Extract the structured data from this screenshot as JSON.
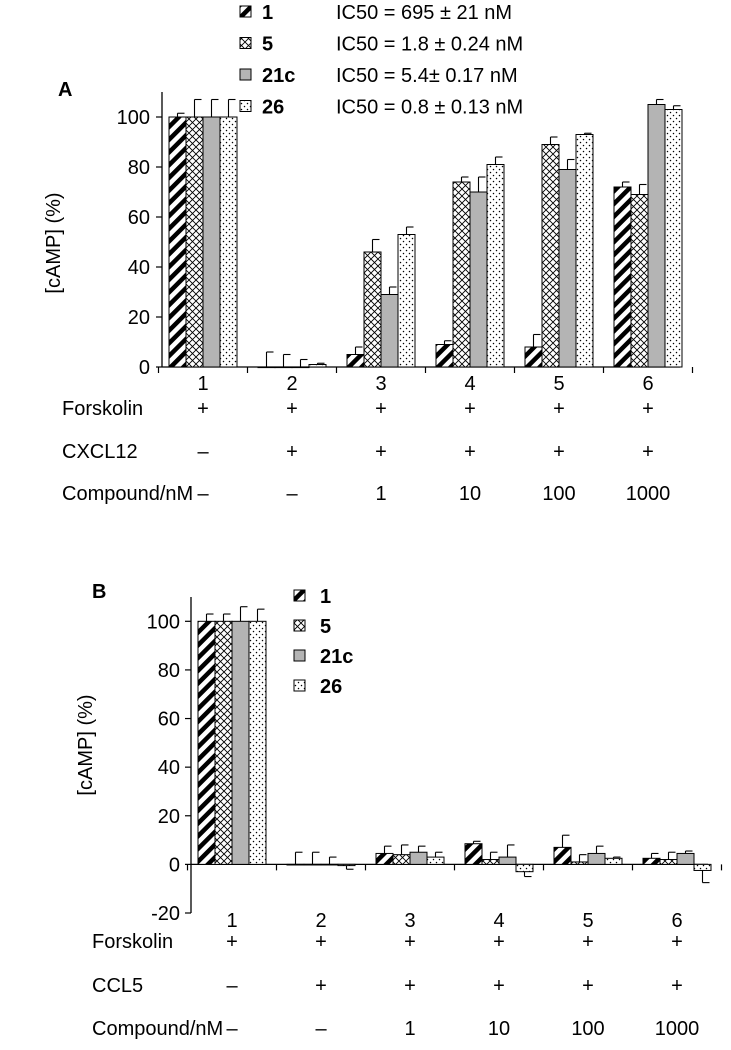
{
  "chart_data": [
    {
      "panel": "A",
      "type": "bar",
      "ylabel": "[cAMP] (%)",
      "ylim": [
        0,
        110
      ],
      "yticks": [
        0,
        20,
        40,
        60,
        80,
        100
      ],
      "categories": [
        "1",
        "2",
        "3",
        "4",
        "5",
        "6"
      ],
      "series": [
        {
          "name": "1",
          "ic50": "IC50 = 695 ± 21 nM",
          "values": [
            100,
            0,
            5,
            9,
            8,
            72
          ],
          "errors": [
            1.5,
            6,
            3,
            1.5,
            5,
            2
          ]
        },
        {
          "name": "5",
          "ic50": "IC50 = 1.8 ± 0.24 nM",
          "values": [
            100,
            0,
            46,
            74,
            89,
            69
          ],
          "errors": [
            7,
            5,
            5,
            2,
            3,
            4
          ]
        },
        {
          "name": "21c",
          "ic50": "IC50 = 5.4± 0.17 nM",
          "values": [
            100,
            0,
            29,
            70,
            79,
            105
          ],
          "errors": [
            7,
            3,
            3,
            6,
            4,
            2
          ]
        },
        {
          "name": "26",
          "ic50": "IC50 = 0.8 ± 0.13 nM",
          "values": [
            100,
            1,
            53,
            81,
            93,
            103
          ],
          "errors": [
            7,
            0.5,
            3,
            3,
            0.5,
            1.5
          ]
        }
      ],
      "condition_rows": [
        {
          "label": "Forskolin",
          "values": [
            "+",
            "+",
            "+",
            "+",
            "+",
            "+"
          ]
        },
        {
          "label": "CXCL12",
          "values": [
            "–",
            "+",
            "+",
            "+",
            "+",
            "+"
          ]
        },
        {
          "label": "Compound/nM",
          "values": [
            "–",
            "–",
            "1",
            "10",
            "100",
            "1000"
          ]
        }
      ],
      "legend_position": "top"
    },
    {
      "panel": "B",
      "type": "bar",
      "ylabel": "[cAMP] (%)",
      "ylim": [
        -20,
        110
      ],
      "yticks": [
        -20,
        0,
        20,
        40,
        60,
        80,
        100
      ],
      "categories": [
        "1",
        "2",
        "3",
        "4",
        "5",
        "6"
      ],
      "series": [
        {
          "name": "1",
          "values": [
            100,
            0,
            4.5,
            8.5,
            7,
            2.5
          ],
          "errors": [
            3,
            5,
            3,
            1,
            5,
            2
          ]
        },
        {
          "name": "5",
          "values": [
            100,
            0,
            4,
            2,
            1,
            2
          ],
          "errors": [
            3,
            5,
            4,
            3,
            3,
            3
          ]
        },
        {
          "name": "21c",
          "values": [
            100,
            0,
            5,
            3,
            4.5,
            4.5
          ],
          "errors": [
            6,
            3,
            2.5,
            5,
            3,
            1
          ]
        },
        {
          "name": "26",
          "values": [
            100,
            -0.5,
            3,
            -3,
            2.5,
            -2.5
          ],
          "errors": [
            5,
            1.5,
            2,
            2,
            0.5,
            5
          ]
        }
      ],
      "condition_rows": [
        {
          "label": "Forskolin",
          "values": [
            "+",
            "+",
            "+",
            "+",
            "+",
            "+"
          ]
        },
        {
          "label": "CCL5",
          "values": [
            "–",
            "+",
            "+",
            "+",
            "+",
            "+"
          ]
        },
        {
          "label": "Compound/nM",
          "values": [
            "–",
            "–",
            "1",
            "10",
            "100",
            "1000"
          ]
        }
      ],
      "legend_position": "top"
    }
  ]
}
